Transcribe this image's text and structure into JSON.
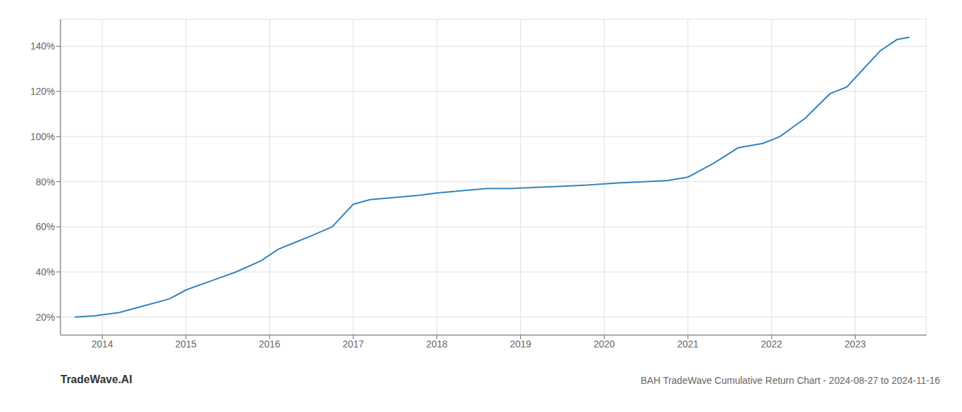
{
  "chart_data": {
    "type": "line",
    "title": "BAH TradeWave Cumulative Return Chart - 2024-08-27 to 2024-11-16",
    "annotations": [
      "TradeWave.AI"
    ],
    "x": [
      2013.67,
      2013.9,
      2014.2,
      2014.5,
      2014.8,
      2015.0,
      2015.3,
      2015.6,
      2015.9,
      2016.1,
      2016.3,
      2016.5,
      2016.75,
      2017.0,
      2017.2,
      2017.5,
      2017.8,
      2018.0,
      2018.3,
      2018.6,
      2018.9,
      2019.2,
      2019.5,
      2019.8,
      2020.0,
      2020.2,
      2020.5,
      2020.75,
      2021.0,
      2021.3,
      2021.6,
      2021.9,
      2022.1,
      2022.4,
      2022.7,
      2022.9,
      2023.1,
      2023.3,
      2023.5,
      2023.65
    ],
    "values": [
      20,
      20.5,
      22,
      25,
      28,
      32,
      36,
      40,
      45,
      50,
      53,
      56,
      60,
      70,
      72,
      73,
      74,
      75,
      76,
      77,
      77,
      77.5,
      78,
      78.5,
      79,
      79.5,
      80,
      80.5,
      82,
      88,
      95,
      97,
      100,
      108,
      119,
      122,
      130,
      138,
      143,
      144
    ],
    "xlim": [
      2013.5,
      2023.85
    ],
    "xticks": [
      2014,
      2015,
      2016,
      2017,
      2018,
      2019,
      2020,
      2021,
      2022,
      2023
    ],
    "ylim": [
      12,
      152
    ],
    "yticks": [
      {
        "value": 20,
        "label": "20%"
      },
      {
        "value": 40,
        "label": "40%"
      },
      {
        "value": 60,
        "label": "60%"
      },
      {
        "value": 80,
        "label": "80%"
      },
      {
        "value": 100,
        "label": "100%"
      },
      {
        "value": 120,
        "label": "120%"
      },
      {
        "value": 140,
        "label": "140%"
      }
    ],
    "grid": true
  }
}
